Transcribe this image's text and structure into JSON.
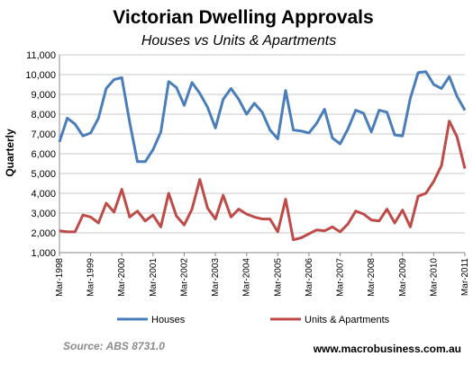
{
  "chart_data": {
    "type": "line",
    "title": "Victorian Dwelling Approvals",
    "subtitle": "Houses vs Units & Apartments",
    "ylabel": "Quarterly",
    "xlabel": "",
    "ylim": [
      1000,
      11000
    ],
    "yticks": [
      "1,000",
      "2,000",
      "3,000",
      "4,000",
      "5,000",
      "6,000",
      "7,000",
      "8,000",
      "9,000",
      "10,000",
      "11,000"
    ],
    "xtick_labels": [
      "Mar-1998",
      "Mar-1999",
      "Mar-2000",
      "Mar-2001",
      "Mar-2002",
      "Mar-2003",
      "Mar-2004",
      "Mar-2005",
      "Mar-2006",
      "Mar-2007",
      "Mar-2008",
      "Mar-2009",
      "Mar-2010",
      "Mar-2011"
    ],
    "grid": true,
    "legend_position": "bottom",
    "series": [
      {
        "name": "Houses",
        "color": "#4a7ebb",
        "values": [
          6600,
          7800,
          7500,
          6900,
          7050,
          7800,
          9300,
          9750,
          9850,
          7600,
          5600,
          5600,
          6200,
          7100,
          9650,
          9350,
          8450,
          9600,
          9050,
          8350,
          7300,
          8750,
          9300,
          8750,
          8000,
          8550,
          8100,
          7200,
          6750,
          9200,
          7200,
          7150,
          7050,
          7550,
          8250,
          6800,
          6500,
          7250,
          8200,
          8050,
          7100,
          8200,
          8100,
          6950,
          6900,
          8800,
          10100,
          10150,
          9500,
          9300,
          9900,
          8900,
          8200
        ]
      },
      {
        "name": "Units & Apartments",
        "color": "#be4b48",
        "values": [
          2100,
          2050,
          2050,
          2900,
          2800,
          2500,
          3500,
          3050,
          4200,
          2800,
          3100,
          2600,
          2900,
          2300,
          4000,
          2850,
          2400,
          3200,
          4700,
          3250,
          2700,
          3900,
          2800,
          3200,
          2950,
          2800,
          2700,
          2700,
          2050,
          3700,
          1650,
          1750,
          1950,
          2150,
          2100,
          2300,
          2050,
          2450,
          3100,
          2950,
          2650,
          2600,
          3200,
          2500,
          3150,
          2300,
          3850,
          4000,
          4600,
          5400,
          7650,
          6850,
          5250
        ]
      }
    ]
  },
  "source": "Source: ABS 8731.0",
  "website": "www.macrobusiness.com.au"
}
